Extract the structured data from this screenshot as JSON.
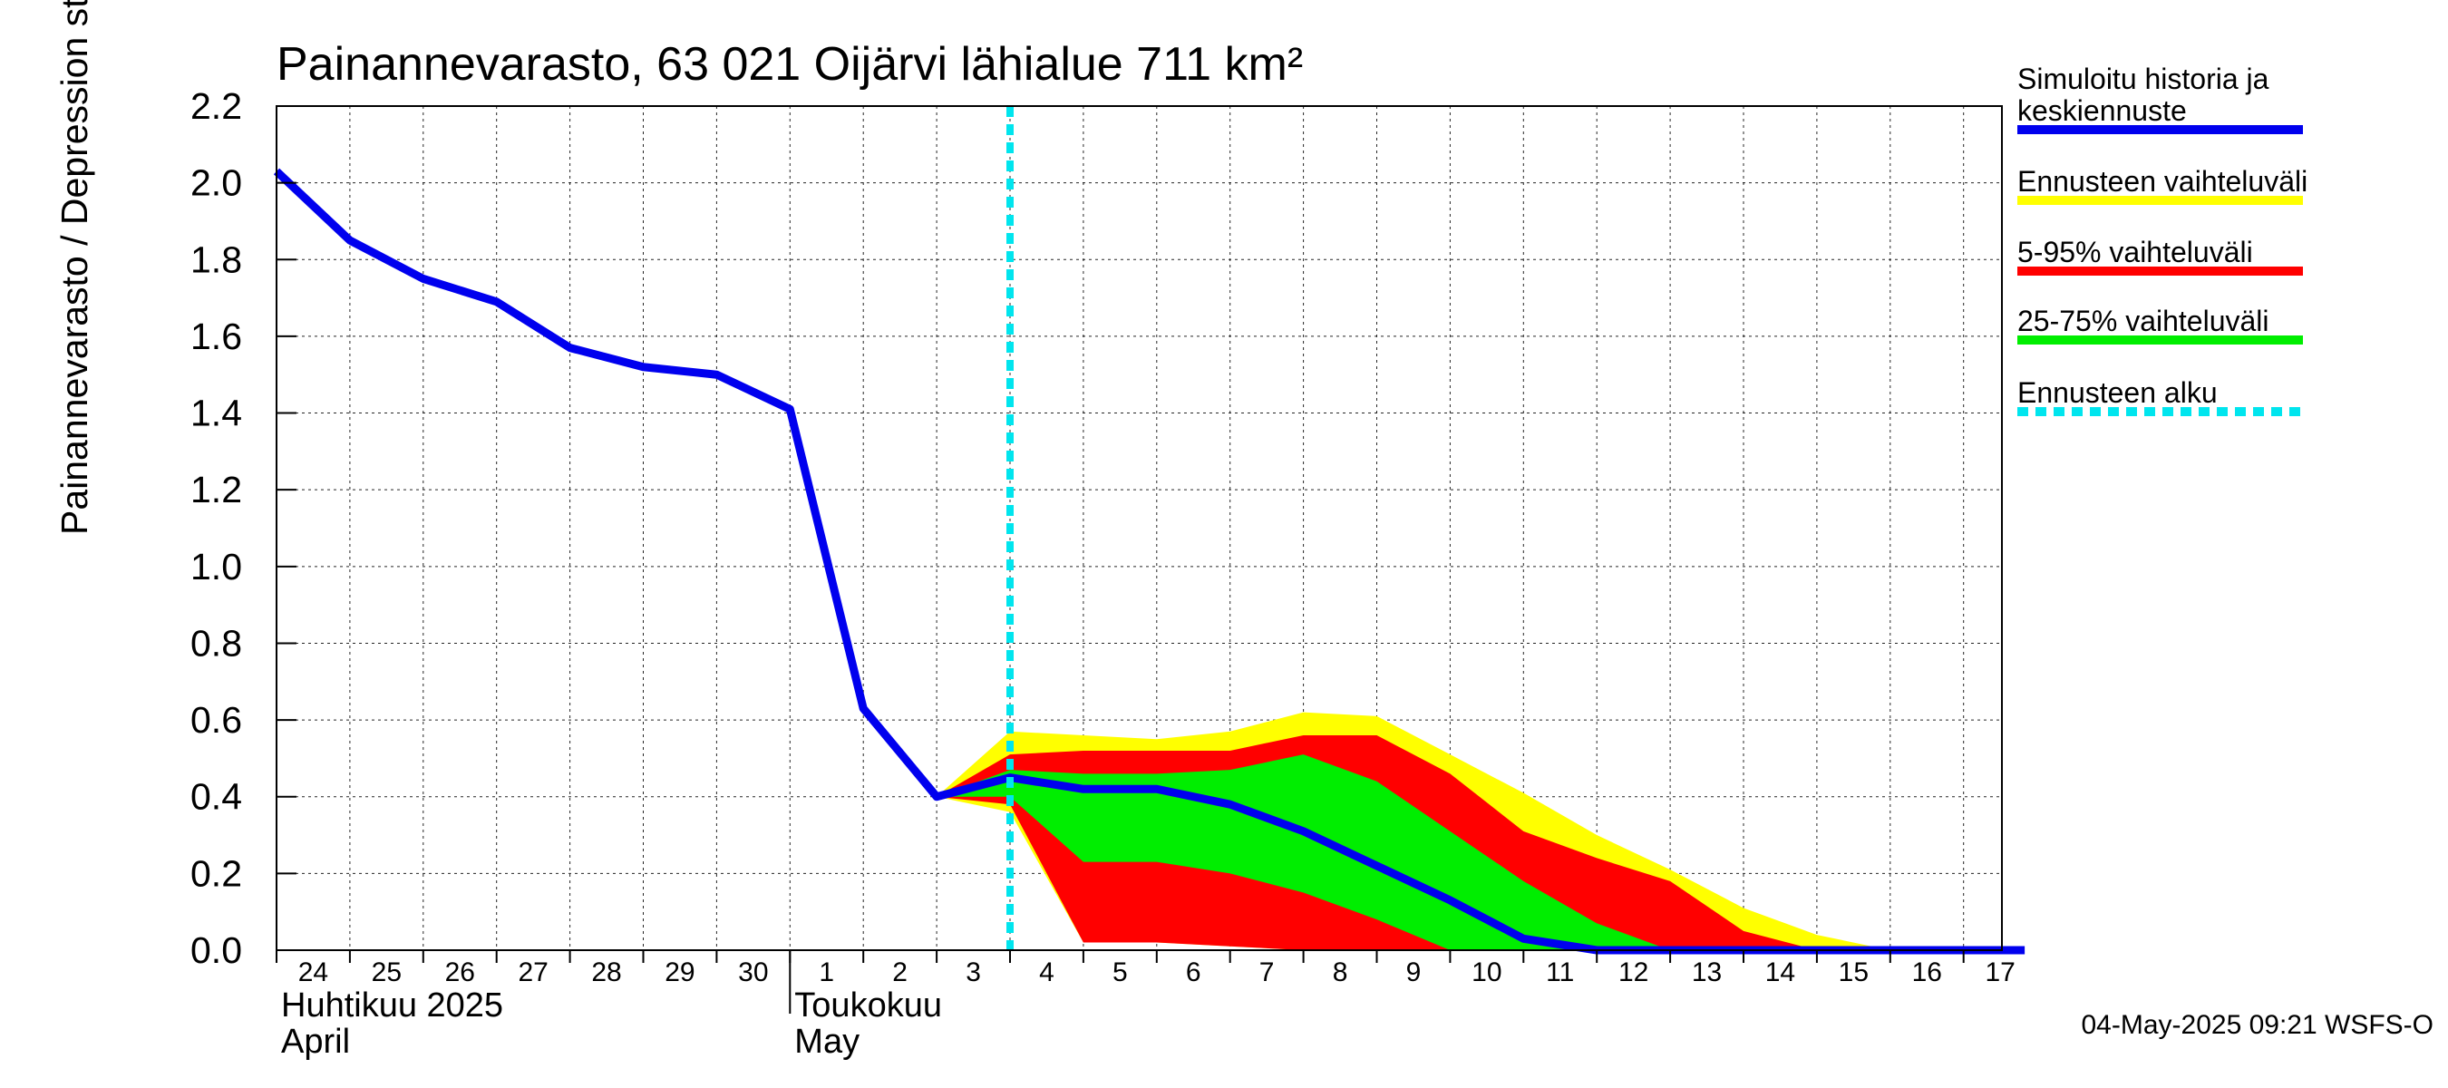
{
  "chart_data": {
    "type": "area",
    "title": "Painannevarasto, 63 021 Oijärvi lähialue 711 km²",
    "ylabel": "Painannevarasto / Depression storage    mm",
    "ylim": [
      0,
      2.2
    ],
    "yticks": [
      "0.0",
      "0.2",
      "0.4",
      "0.6",
      "0.8",
      "1.0",
      "1.2",
      "1.4",
      "1.6",
      "1.8",
      "2.0",
      "2.2"
    ],
    "x_dates": [
      "2025-04-24",
      "2025-04-25",
      "2025-04-26",
      "2025-04-27",
      "2025-04-28",
      "2025-04-29",
      "2025-04-30",
      "2025-05-01",
      "2025-05-02",
      "2025-05-03",
      "2025-05-04",
      "2025-05-05",
      "2025-05-06",
      "2025-05-07",
      "2025-05-08",
      "2025-05-09",
      "2025-05-10",
      "2025-05-11",
      "2025-05-12",
      "2025-05-13",
      "2025-05-14",
      "2025-05-15",
      "2025-05-16",
      "2025-05-17"
    ],
    "x_ticks": [
      "24",
      "25",
      "26",
      "27",
      "28",
      "29",
      "30",
      "1",
      "2",
      "3",
      "4",
      "5",
      "6",
      "7",
      "8",
      "9",
      "10",
      "11",
      "12",
      "13",
      "14",
      "15",
      "16",
      "17"
    ],
    "months": [
      {
        "fi": "Huhtikuu  2025",
        "en": "April"
      },
      {
        "fi": "Toukokuu",
        "en": "May"
      }
    ],
    "forecast_start": "2025-05-04 00:00",
    "grid": true,
    "legend_position": "right",
    "legend": [
      {
        "label": "Simuloitu historia ja\nkeskiennuste",
        "color": "#0000ee",
        "style": "solid"
      },
      {
        "label": "Ennusteen vaihteluväli",
        "color": "#ffff00",
        "style": "solid"
      },
      {
        "label": "5-95% vaihteluväli",
        "color": "#ff0000",
        "style": "solid"
      },
      {
        "label": "25-75% vaihteluväli",
        "color": "#00ee00",
        "style": "solid"
      },
      {
        "label": "Ennusteen alku",
        "color": "#00e5ee",
        "style": "dashed"
      }
    ],
    "series": [
      {
        "name": "Simuloitu historia ja keskiennuste",
        "color": "#0000ee",
        "points": [
          [
            "2025-04-24 00:00",
            2.03
          ],
          [
            "2025-04-25 00:00",
            1.85
          ],
          [
            "2025-04-26 00:00",
            1.75
          ],
          [
            "2025-04-27 00:00",
            1.69
          ],
          [
            "2025-04-28 00:00",
            1.57
          ],
          [
            "2025-04-29 00:00",
            1.52
          ],
          [
            "2025-04-30 00:00",
            1.5
          ],
          [
            "2025-05-01 00:00",
            1.41
          ],
          [
            "2025-05-02 00:00",
            0.63
          ],
          [
            "2025-05-03 00:00",
            0.4
          ],
          [
            "2025-05-04 00:00",
            0.45
          ],
          [
            "2025-05-05 00:00",
            0.42
          ],
          [
            "2025-05-06 00:00",
            0.42
          ],
          [
            "2025-05-07 00:00",
            0.38
          ],
          [
            "2025-05-08 00:00",
            0.31
          ],
          [
            "2025-05-09 00:00",
            0.22
          ],
          [
            "2025-05-10 00:00",
            0.13
          ],
          [
            "2025-05-11 00:00",
            0.03
          ],
          [
            "2025-05-12 00:00",
            0.0
          ],
          [
            "2025-05-13 00:00",
            0.0
          ],
          [
            "2025-05-14 00:00",
            0.0
          ],
          [
            "2025-05-15 00:00",
            0.0
          ],
          [
            "2025-05-16 00:00",
            0.0
          ],
          [
            "2025-05-17 00:00",
            0.0
          ],
          [
            "2025-05-17 20:00",
            0.0
          ]
        ]
      }
    ],
    "bands": [
      {
        "name": "Ennusteen vaihteluväli",
        "color": "#ffff00",
        "points": [
          [
            "2025-05-03 00:00",
            0.4,
            0.4
          ],
          [
            "2025-05-04 00:00",
            0.36,
            0.57
          ],
          [
            "2025-05-05 00:00",
            0.02,
            0.56
          ],
          [
            "2025-05-06 00:00",
            0.02,
            0.55
          ],
          [
            "2025-05-07 00:00",
            0.01,
            0.57
          ],
          [
            "2025-05-08 00:00",
            0.0,
            0.62
          ],
          [
            "2025-05-09 00:00",
            0.0,
            0.61
          ],
          [
            "2025-05-10 00:00",
            0.0,
            0.51
          ],
          [
            "2025-05-11 00:00",
            0.0,
            0.41
          ],
          [
            "2025-05-12 00:00",
            0.0,
            0.3
          ],
          [
            "2025-05-13 00:00",
            0.0,
            0.21
          ],
          [
            "2025-05-14 00:00",
            0.0,
            0.11
          ],
          [
            "2025-05-15 00:00",
            0.0,
            0.04
          ],
          [
            "2025-05-16 00:00",
            0.0,
            0.0
          ]
        ]
      },
      {
        "name": "5-95% vaihteluväli",
        "color": "#ff0000",
        "points": [
          [
            "2025-05-03 00:00",
            0.4,
            0.4
          ],
          [
            "2025-05-04 00:00",
            0.38,
            0.51
          ],
          [
            "2025-05-05 00:00",
            0.02,
            0.52
          ],
          [
            "2025-05-06 00:00",
            0.02,
            0.52
          ],
          [
            "2025-05-07 00:00",
            0.01,
            0.52
          ],
          [
            "2025-05-08 00:00",
            0.0,
            0.56
          ],
          [
            "2025-05-09 00:00",
            0.0,
            0.56
          ],
          [
            "2025-05-10 00:00",
            0.0,
            0.46
          ],
          [
            "2025-05-11 00:00",
            0.0,
            0.31
          ],
          [
            "2025-05-12 00:00",
            0.0,
            0.24
          ],
          [
            "2025-05-13 00:00",
            0.0,
            0.18
          ],
          [
            "2025-05-14 00:00",
            0.0,
            0.05
          ],
          [
            "2025-05-15 00:00",
            0.0,
            0.0
          ]
        ]
      },
      {
        "name": "25-75% vaihteluväli",
        "color": "#00ee00",
        "points": [
          [
            "2025-05-03 00:00",
            0.4,
            0.4
          ],
          [
            "2025-05-04 00:00",
            0.4,
            0.47
          ],
          [
            "2025-05-05 00:00",
            0.23,
            0.46
          ],
          [
            "2025-05-06 00:00",
            0.23,
            0.46
          ],
          [
            "2025-05-07 00:00",
            0.2,
            0.47
          ],
          [
            "2025-05-08 00:00",
            0.15,
            0.51
          ],
          [
            "2025-05-09 00:00",
            0.08,
            0.44
          ],
          [
            "2025-05-10 00:00",
            0.0,
            0.31
          ],
          [
            "2025-05-11 00:00",
            0.0,
            0.18
          ],
          [
            "2025-05-12 00:00",
            0.0,
            0.07
          ],
          [
            "2025-05-13 00:00",
            0.0,
            0.0
          ]
        ]
      }
    ]
  },
  "footer": {
    "timestamp": "04-May-2025 09:21 WSFS-O"
  }
}
